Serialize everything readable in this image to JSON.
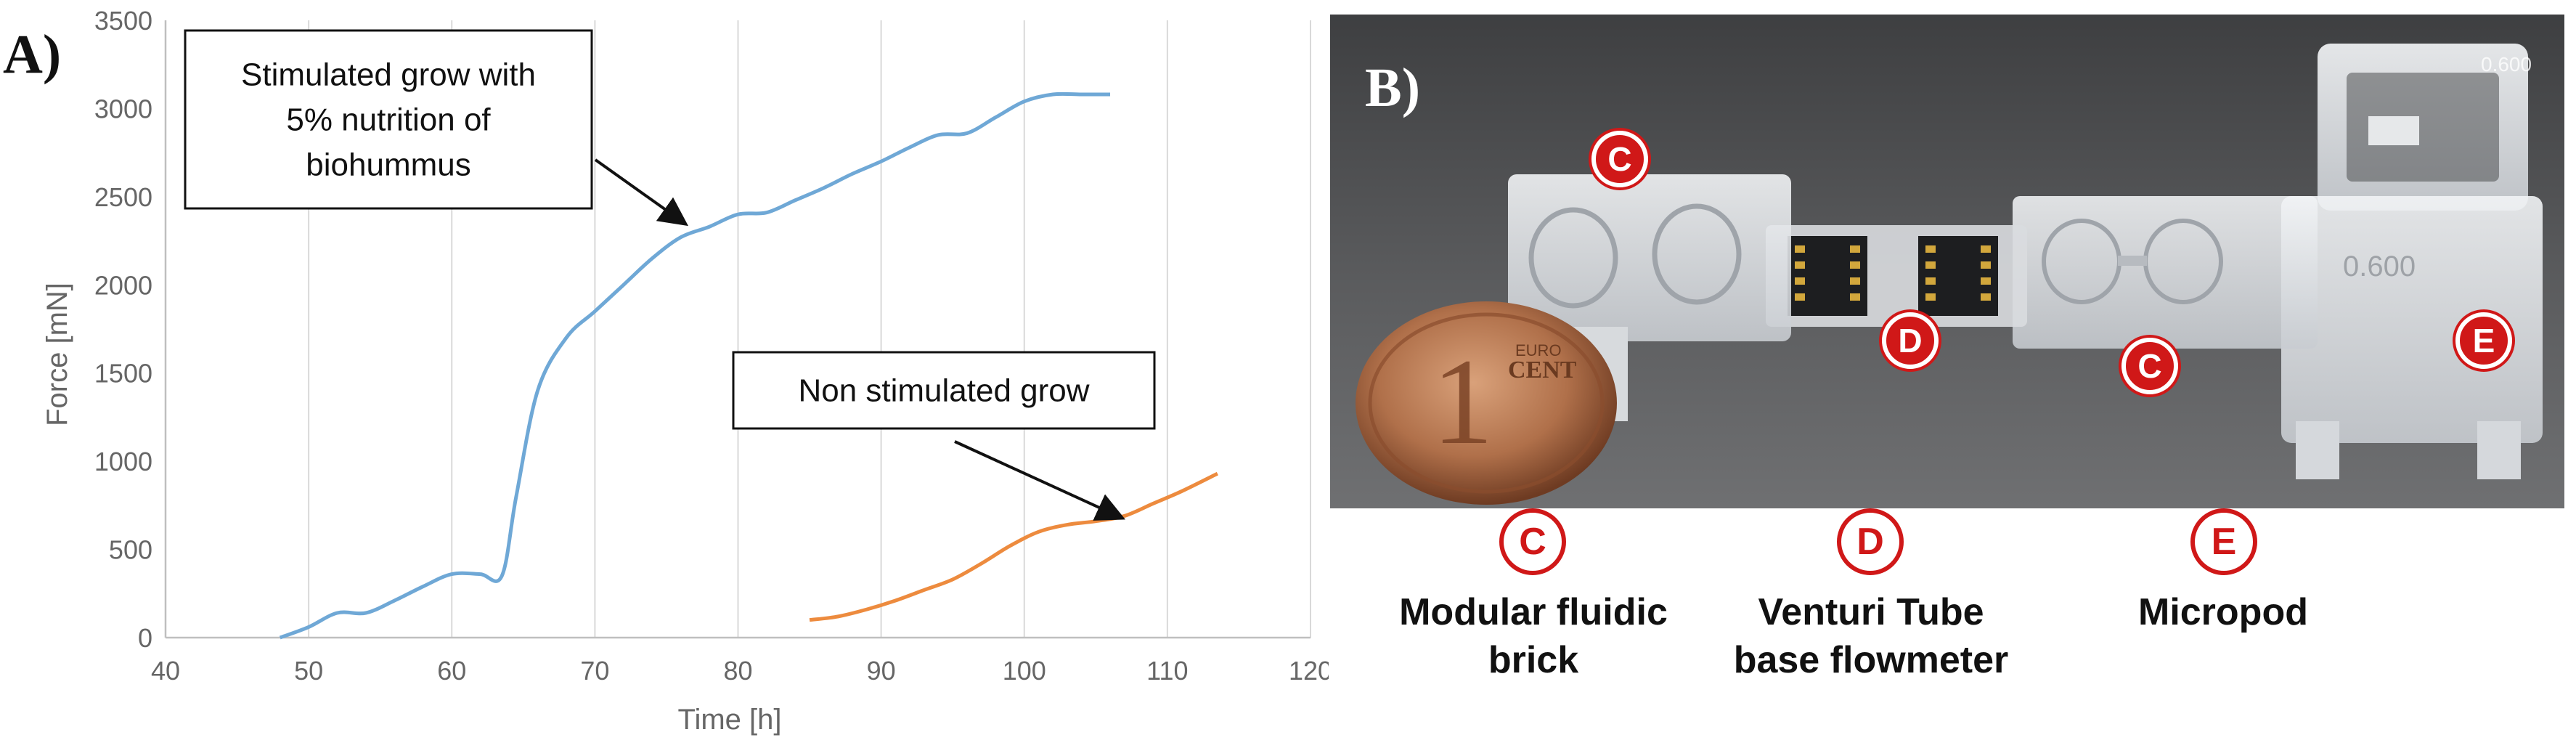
{
  "panel_a_label": "A)",
  "panel_b_label": "B)",
  "chart_data": {
    "type": "line",
    "title": "",
    "xlabel": "Time [h]",
    "ylabel": "Force [mN]",
    "xlim": [
      40,
      120
    ],
    "ylim": [
      0,
      3500
    ],
    "xticks": [
      40,
      50,
      60,
      70,
      80,
      90,
      100,
      110,
      120
    ],
    "yticks": [
      0,
      500,
      1000,
      1500,
      2000,
      2500,
      3000,
      3500
    ],
    "grid": "vertical",
    "series": [
      {
        "name": "Stimulated grow with 5% nutrition of biohummus",
        "color": "#6fa8d6",
        "x": [
          48,
          50,
          52,
          54,
          56,
          58,
          60,
          62,
          63.5,
          64.5,
          66,
          68,
          70,
          72,
          74,
          76,
          78,
          80,
          82,
          84,
          86,
          88,
          90,
          92,
          94,
          96,
          98,
          100,
          102,
          104,
          106
        ],
        "y": [
          0,
          60,
          140,
          140,
          210,
          290,
          360,
          360,
          350,
          800,
          1400,
          1700,
          1850,
          2000,
          2150,
          2270,
          2330,
          2400,
          2410,
          2480,
          2550,
          2630,
          2700,
          2780,
          2850,
          2860,
          2950,
          3040,
          3080,
          3080,
          3080
        ]
      },
      {
        "name": "Non stimulated grow",
        "color": "#ed8b3e",
        "x": [
          85,
          87,
          89,
          91,
          93,
          95,
          97,
          99,
          101,
          103,
          105,
          107,
          109,
          111,
          113.5
        ],
        "y": [
          100,
          120,
          160,
          210,
          270,
          330,
          420,
          520,
          600,
          640,
          660,
          690,
          760,
          830,
          930
        ]
      }
    ],
    "annotations": [
      {
        "name": "stimulated",
        "lines": [
          "Stimulated grow with",
          "5% nutrition of",
          "biohummus"
        ],
        "target_x": 76.5,
        "target_y": 2370
      },
      {
        "name": "non-stimulated",
        "lines": [
          "Non stimulated grow"
        ],
        "target_x": 107,
        "target_y": 700
      }
    ]
  },
  "photo": {
    "badges_in_photo": [
      "C",
      "D",
      "C",
      "E"
    ],
    "coin_text": [
      "EURO",
      "CENT"
    ],
    "brick_numbers": [
      "0.600",
      "0.600"
    ],
    "legend": [
      {
        "badge": "C",
        "caption": [
          "Modular fluidic",
          "brick"
        ]
      },
      {
        "badge": "D",
        "caption": [
          "Venturi Tube",
          "base flowmeter"
        ]
      },
      {
        "badge": "E",
        "caption": [
          "Micropod"
        ]
      }
    ]
  }
}
